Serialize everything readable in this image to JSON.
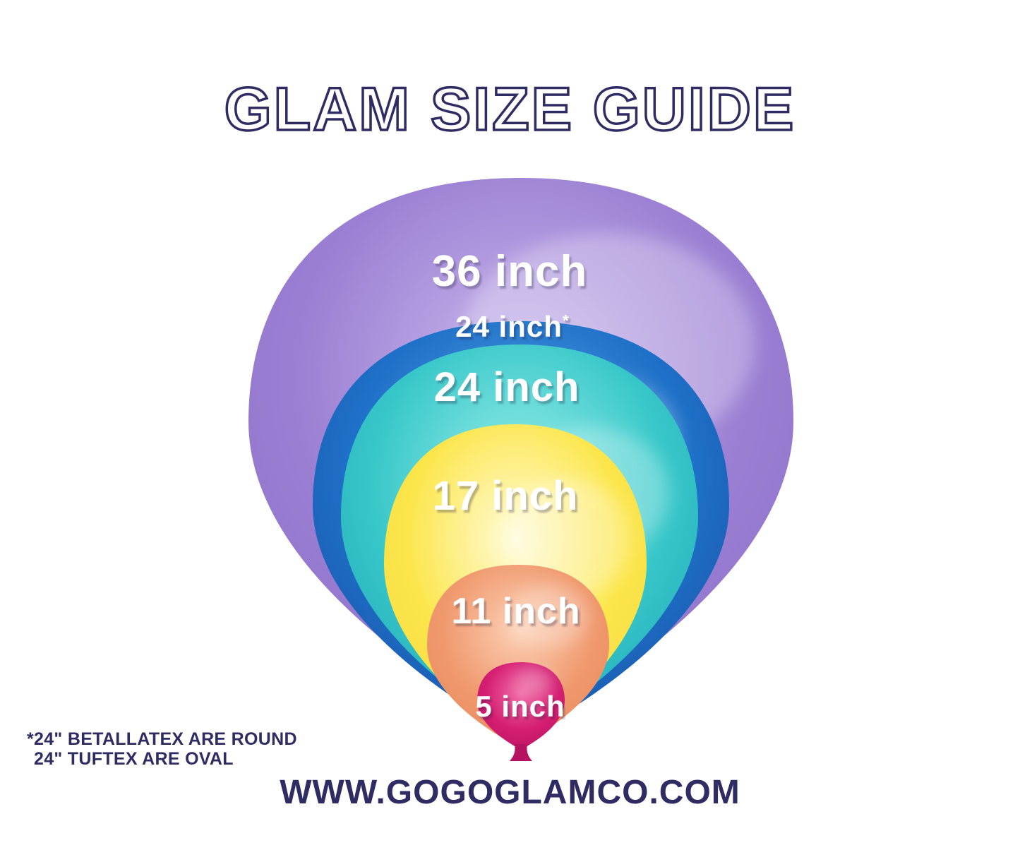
{
  "title": "GLAM SIZE GUIDE",
  "balloons": [
    {
      "id": "36-inch",
      "label": "36 inch",
      "sup": "",
      "size_inches": 36,
      "color": {
        "light": "#c9b8ec",
        "base": "#9b7fd3",
        "dark": "#8a6ec6"
      }
    },
    {
      "id": "24-inch-starred",
      "label": "24 inch",
      "sup": "*",
      "size_inches": 24,
      "color": {
        "light": "#5fabe9",
        "base": "#1e70c8",
        "dark": "#1a4c9f"
      }
    },
    {
      "id": "24-inch",
      "label": "24 inch",
      "sup": "",
      "size_inches": 24,
      "color": {
        "light": "#9aefe9",
        "base": "#38c7c9",
        "dark": "#1ba4b4"
      }
    },
    {
      "id": "17-inch",
      "label": "17 inch",
      "sup": "",
      "size_inches": 17,
      "color": {
        "light": "#fffbd8",
        "base": "#fce64c",
        "dark": "#f4d83c"
      }
    },
    {
      "id": "11-inch",
      "label": "11 inch",
      "sup": "",
      "size_inches": 11,
      "color": {
        "light": "#fbcfb4",
        "base": "#f0996e",
        "dark": "#e8875c"
      }
    },
    {
      "id": "5-inch",
      "label": "5 inch",
      "sup": "",
      "size_inches": 5,
      "color": {
        "light": "#f06ba6",
        "base": "#d51e72",
        "dark": "#b5135f"
      }
    }
  ],
  "footnote": {
    "line1": "*24\" BETALLATEX ARE ROUND",
    "line2": "24\" TUFTEX ARE OVAL"
  },
  "website": "WWW.GOGOGLAMCO.COM",
  "colors": {
    "navy": "#2e2c62",
    "background": "#ffffff",
    "label_text": "#ffffff"
  }
}
